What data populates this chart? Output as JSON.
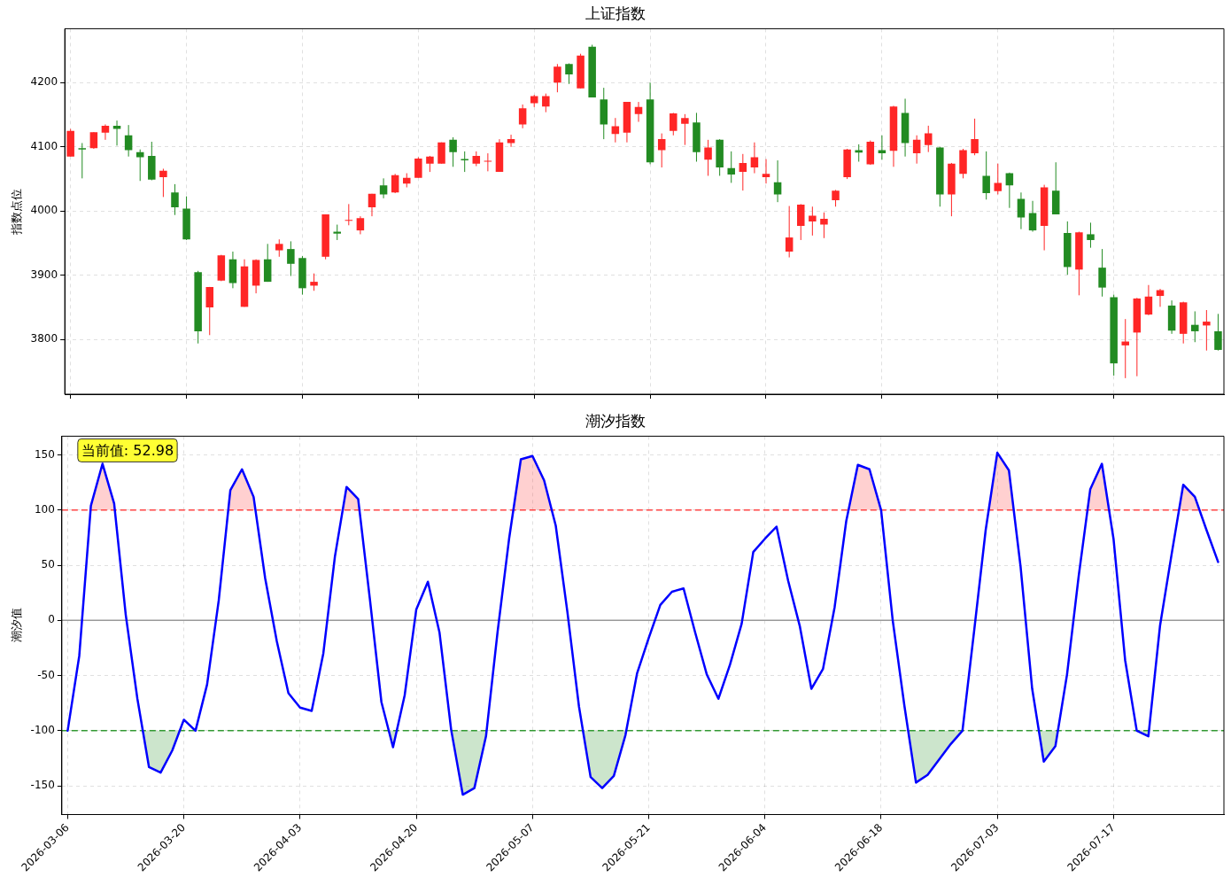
{
  "chart_data": [
    {
      "type": "candlestick",
      "title": "上证指数",
      "ylabel": "指数点位",
      "categories": [
        "2026-03-06",
        null,
        null,
        null,
        null,
        null,
        null,
        null,
        null,
        null,
        "2026-03-20",
        null,
        null,
        null,
        null,
        null,
        null,
        null,
        null,
        null,
        "2026-04-03",
        null,
        null,
        null,
        null,
        null,
        null,
        null,
        null,
        null,
        "2026-04-20",
        null,
        null,
        null,
        null,
        null,
        null,
        null,
        null,
        null,
        "2026-05-07",
        null,
        null,
        null,
        null,
        null,
        null,
        null,
        null,
        null,
        "2026-05-21",
        null,
        null,
        null,
        null,
        null,
        null,
        null,
        null,
        null,
        "2026-06-04",
        null,
        null,
        null,
        null,
        null,
        null,
        null,
        null,
        null,
        "2026-06-18",
        null,
        null,
        null,
        null,
        null,
        null,
        null,
        null,
        null,
        "2026-07-03",
        null,
        null,
        null,
        null,
        null,
        null,
        null,
        null,
        null,
        "2026-07-17",
        null,
        null,
        null,
        null,
        null,
        null,
        null,
        null,
        null
      ],
      "ohlc": [
        [
          4085,
          4128,
          4085,
          4125
        ],
        [
          4098,
          4106,
          4051,
          4096
        ],
        [
          4098,
          4123,
          4097,
          4123
        ],
        [
          4122,
          4135,
          4111,
          4133
        ],
        [
          4133,
          4141,
          4102,
          4128
        ],
        [
          4118,
          4134,
          4085,
          4095
        ],
        [
          4092,
          4096,
          4047,
          4084
        ],
        [
          4086,
          4108,
          4048,
          4049
        ],
        [
          4053,
          4066,
          4022,
          4063
        ],
        [
          4029,
          4042,
          3994,
          4006
        ],
        [
          4004,
          4023,
          3955,
          3956
        ],
        [
          3905,
          3907,
          3794,
          3813
        ],
        [
          3850,
          3882,
          3807,
          3882
        ],
        [
          3892,
          3932,
          3891,
          3931
        ],
        [
          3925,
          3937,
          3880,
          3888
        ],
        [
          3851,
          3925,
          3851,
          3914
        ],
        [
          3884,
          3925,
          3872,
          3924
        ],
        [
          3925,
          3949,
          3890,
          3890
        ],
        [
          3939,
          3956,
          3929,
          3949
        ],
        [
          3941,
          3953,
          3899,
          3918
        ],
        [
          3927,
          3930,
          3870,
          3880
        ],
        [
          3884,
          3903,
          3876,
          3890
        ],
        [
          3929,
          3995,
          3925,
          3995
        ],
        [
          3968,
          3979,
          3955,
          3965
        ],
        [
          3985,
          4011,
          3978,
          3986
        ],
        [
          3970,
          3992,
          3964,
          3989
        ],
        [
          4006,
          4027,
          3992,
          4027
        ],
        [
          4040,
          4051,
          4020,
          4026
        ],
        [
          4029,
          4058,
          4028,
          4056
        ],
        [
          4043,
          4059,
          4037,
          4052
        ],
        [
          4052,
          4084,
          4052,
          4082
        ],
        [
          4074,
          4086,
          4061,
          4085
        ],
        [
          4074,
          4107,
          4074,
          4107
        ],
        [
          4111,
          4115,
          4069,
          4092
        ],
        [
          4081,
          4093,
          4061,
          4079
        ],
        [
          4074,
          4093,
          4070,
          4086
        ],
        [
          4077,
          4090,
          4062,
          4078
        ],
        [
          4061,
          4112,
          4061,
          4107
        ],
        [
          4106,
          4119,
          4100,
          4112
        ],
        [
          4135,
          4166,
          4129,
          4160
        ],
        [
          4168,
          4181,
          4162,
          4179
        ],
        [
          4163,
          4183,
          4154,
          4179
        ],
        [
          4200,
          4229,
          4185,
          4225
        ],
        [
          4229,
          4230,
          4198,
          4213
        ],
        [
          4191,
          4245,
          4191,
          4242
        ],
        [
          4256,
          4259,
          4177,
          4177
        ],
        [
          4174,
          4192,
          4112,
          4135
        ],
        [
          4120,
          4145,
          4107,
          4132
        ],
        [
          4122,
          4170,
          4107,
          4170
        ],
        [
          4151,
          4170,
          4139,
          4162
        ],
        [
          4174,
          4200,
          4073,
          4076
        ],
        [
          4095,
          4121,
          4068,
          4112
        ],
        [
          4125,
          4153,
          4118,
          4152
        ],
        [
          4136,
          4151,
          4103,
          4145
        ],
        [
          4138,
          4153,
          4077,
          4092
        ],
        [
          4080,
          4111,
          4055,
          4099
        ],
        [
          4111,
          4112,
          4055,
          4068
        ],
        [
          4067,
          4093,
          4044,
          4057
        ],
        [
          4061,
          4089,
          4032,
          4075
        ],
        [
          4068,
          4107,
          4059,
          4084
        ],
        [
          4053,
          4081,
          4043,
          4058
        ],
        [
          4045,
          4079,
          4014,
          4026
        ],
        [
          3937,
          4008,
          3928,
          3959
        ],
        [
          3977,
          4011,
          3955,
          4010
        ],
        [
          3984,
          4007,
          3962,
          3993
        ],
        [
          3979,
          3998,
          3958,
          3988
        ],
        [
          4017,
          4033,
          4007,
          4032
        ],
        [
          4053,
          4097,
          4050,
          4096
        ],
        [
          4095,
          4104,
          4077,
          4091
        ],
        [
          4073,
          4110,
          4072,
          4108
        ],
        [
          4095,
          4118,
          4080,
          4090
        ],
        [
          4094,
          4164,
          4069,
          4163
        ],
        [
          4153,
          4175,
          4085,
          4106
        ],
        [
          4090,
          4118,
          4074,
          4111
        ],
        [
          4103,
          4133,
          4092,
          4121
        ],
        [
          4099,
          4100,
          4007,
          4026
        ],
        [
          4026,
          4075,
          3992,
          4074
        ],
        [
          4058,
          4097,
          4051,
          4095
        ],
        [
          4090,
          4144,
          4087,
          4112
        ],
        [
          4055,
          4093,
          4018,
          4028
        ],
        [
          4031,
          4074,
          4026,
          4044
        ],
        [
          4059,
          4060,
          4005,
          4040
        ],
        [
          4019,
          4029,
          3972,
          3990
        ],
        [
          3997,
          4016,
          3968,
          3970
        ],
        [
          3977,
          4041,
          3939,
          4037
        ],
        [
          4032,
          4076,
          3995,
          3995
        ],
        [
          3966,
          3984,
          3901,
          3913
        ],
        [
          3909,
          3968,
          3869,
          3967
        ],
        [
          3964,
          3982,
          3943,
          3955
        ],
        [
          3912,
          3941,
          3867,
          3881
        ],
        [
          3866,
          3870,
          3744,
          3763
        ],
        [
          3791,
          3832,
          3740,
          3797
        ],
        [
          3811,
          3865,
          3743,
          3864
        ],
        [
          3839,
          3885,
          3838,
          3867
        ],
        [
          3868,
          3879,
          3851,
          3877
        ],
        [
          3853,
          3861,
          3809,
          3814
        ],
        [
          3809,
          3859,
          3794,
          3858
        ],
        [
          3823,
          3844,
          3796,
          3813
        ],
        [
          3822,
          3846,
          3783,
          3828
        ],
        [
          3813,
          3840,
          3783,
          3784
        ]
      ],
      "colors": [
        "#ff2626",
        "#228b22",
        "#ff2626",
        "#ff2626",
        "#228b22",
        "#228b22",
        "#228b22",
        "#228b22",
        "#ff2626",
        "#228b22",
        "#228b22",
        "#228b22",
        "#ff2626",
        "#ff2626",
        "#228b22",
        "#ff2626",
        "#ff2626",
        "#228b22",
        "#ff2626",
        "#228b22",
        "#228b22",
        "#ff2626",
        "#ff2626",
        "#228b22",
        "#ff2626",
        "#ff2626",
        "#ff2626",
        "#228b22",
        "#ff2626",
        "#ff2626",
        "#ff2626",
        "#ff2626",
        "#ff2626",
        "#228b22",
        "#228b22",
        "#ff2626",
        "#ff2626",
        "#ff2626",
        "#ff2626",
        "#ff2626",
        "#ff2626",
        "#ff2626",
        "#ff2626",
        "#228b22",
        "#ff2626",
        "#228b22",
        "#228b22",
        "#ff2626",
        "#ff2626",
        "#ff2626",
        "#228b22",
        "#ff2626",
        "#ff2626",
        "#ff2626",
        "#228b22",
        "#ff2626",
        "#228b22",
        "#228b22",
        "#ff2626",
        "#ff2626",
        "#ff2626",
        "#228b22",
        "#ff2626",
        "#ff2626",
        "#ff2626",
        "#ff2626",
        "#ff2626",
        "#ff2626",
        "#228b22",
        "#ff2626",
        "#228b22",
        "#ff2626",
        "#228b22",
        "#ff2626",
        "#ff2626",
        "#228b22",
        "#ff2626",
        "#ff2626",
        "#ff2626",
        "#228b22",
        "#ff2626",
        "#228b22",
        "#228b22",
        "#228b22",
        "#ff2626",
        "#228b22",
        "#228b22",
        "#ff2626",
        "#228b22",
        "#228b22",
        "#228b22",
        "#ff2626",
        "#ff2626",
        "#ff2626",
        "#ff2626",
        "#228b22",
        "#ff2626",
        "#228b22",
        "#ff2626",
        "#228b22"
      ],
      "ylim": [
        3715,
        4284
      ],
      "yticks": [
        3800,
        3900,
        4000,
        4100,
        4200
      ],
      "grid": true,
      "tick_labels": "y"
    },
    {
      "type": "line",
      "title": "潮汐指数",
      "ylabel": "潮汐值",
      "categories": [
        "2026-03-06",
        null,
        null,
        null,
        null,
        null,
        null,
        null,
        null,
        null,
        "2026-03-20",
        null,
        null,
        null,
        null,
        null,
        null,
        null,
        null,
        null,
        "2026-04-03",
        null,
        null,
        null,
        null,
        null,
        null,
        null,
        null,
        null,
        "2026-04-20",
        null,
        null,
        null,
        null,
        null,
        null,
        null,
        null,
        null,
        "2026-05-07",
        null,
        null,
        null,
        null,
        null,
        null,
        null,
        null,
        null,
        "2026-05-21",
        null,
        null,
        null,
        null,
        null,
        null,
        null,
        null,
        null,
        "2026-06-04",
        null,
        null,
        null,
        null,
        null,
        null,
        null,
        null,
        null,
        "2026-06-18",
        null,
        null,
        null,
        null,
        null,
        null,
        null,
        null,
        null,
        "2026-07-03",
        null,
        null,
        null,
        null,
        null,
        null,
        null,
        null,
        null,
        "2026-07-17",
        null,
        null,
        null,
        null,
        null,
        null,
        null,
        null,
        null
      ],
      "series": [
        {
          "color": "#0000ff",
          "values": [
            -100,
            -32,
            104,
            142,
            106,
            5,
            -71,
            -133,
            -138,
            -118,
            -90,
            -100,
            -58,
            18,
            118,
            137,
            112,
            38,
            -19,
            -66,
            -79,
            -82,
            -30,
            58,
            121,
            110,
            20,
            -74,
            -115,
            -68,
            10,
            35,
            -11,
            -99,
            -158,
            -152,
            -105,
            -10,
            75,
            146,
            149,
            127,
            86,
            8,
            -78,
            -142,
            -152,
            -141,
            -104,
            -48,
            -16,
            14,
            26,
            29,
            -11,
            -49,
            -71,
            -40,
            -3,
            62,
            74,
            85,
            36,
            -5,
            -62,
            -44,
            12,
            90,
            141,
            137,
            100,
            0,
            -77,
            -147,
            -140,
            -126,
            -112,
            -100,
            -10,
            82,
            152,
            136,
            49,
            -62,
            -128,
            -114,
            -49,
            40,
            119,
            142,
            74,
            -36,
            -100,
            -105,
            -5,
            60,
            123,
            112,
            82,
            52.98
          ]
        }
      ],
      "ylim": [
        -176,
        167
      ],
      "yticks": [
        -150,
        -100,
        -50,
        0,
        50,
        100,
        150
      ],
      "grid": true,
      "marker": "none",
      "line_style": "solid",
      "ref_lines": [
        {
          "axis": "y",
          "value": 100,
          "color": "#ff4444",
          "line_style": "dashed"
        },
        {
          "axis": "y",
          "value": -100,
          "color": "#339933",
          "line_style": "dashed"
        },
        {
          "axis": "y",
          "value": 0,
          "color": "#999999",
          "line_style": "solid"
        }
      ],
      "annotations": [
        "当前值: 52.98"
      ]
    }
  ]
}
